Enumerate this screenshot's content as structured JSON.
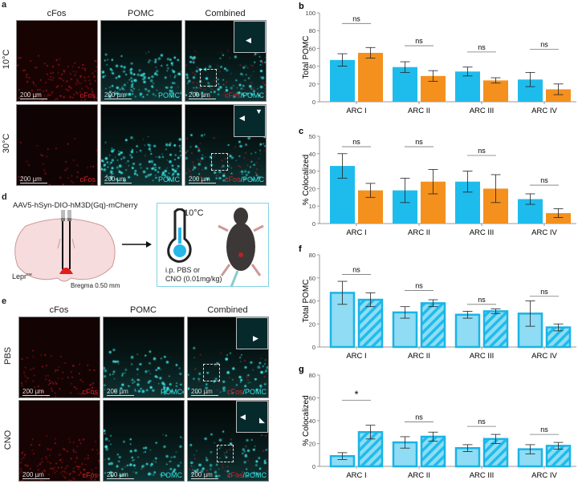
{
  "panel_labels": {
    "a": "a",
    "b": "b",
    "c": "c",
    "d": "d",
    "e": "e",
    "f": "f",
    "g": "g"
  },
  "panel_a": {
    "columns": [
      "cFos",
      "POMC",
      "Combined"
    ],
    "rows": [
      "10°C",
      "30°C"
    ],
    "scale_bar": "200 µm",
    "channel_labels": {
      "cfos": "cFos",
      "pomc": "POMC",
      "combined_red": "cFos",
      "combined_sep": "/",
      "combined_cyan": "POMC"
    }
  },
  "panel_d": {
    "virus": "AAV5-hSyn-DIO-hM3D(Gq)-mCherry",
    "mouse_line": "Lepr",
    "mouse_line_sup": "cre",
    "bregma": "Bregma 0.50 mm",
    "temperature": "10°C",
    "injection_line1": "i.p. PBS or",
    "injection_line2": "CNO (0.01mg/kg)"
  },
  "panel_e": {
    "columns": [
      "cFos",
      "POMC",
      "Combined"
    ],
    "rows": [
      "PBS",
      "CNO"
    ],
    "scale_bar": "200 µm",
    "channel_labels": {
      "cfos": "cFos",
      "pomc": "POMC",
      "combined_red": "cFos",
      "combined_sep": "/",
      "combined_cyan": "POMC"
    }
  },
  "colors": {
    "blue": "#1ebcec",
    "orange": "#f4901e",
    "light_blue": "#8fdcf4",
    "border_blue": "#1ab4e6",
    "cyan": "#2ee6e6",
    "red": "#e0202a"
  },
  "chart_data": [
    {
      "id": "b",
      "type": "bar",
      "ylabel": "Total POMC",
      "ylim": [
        0,
        100
      ],
      "yticks": [
        "0",
        "20",
        "40",
        "60",
        "80",
        "100"
      ],
      "categories": [
        "ARC I",
        "ARC II",
        "ARC III",
        "ARC IV"
      ],
      "style": "solid",
      "series": [
        {
          "values": [
            47,
            39,
            34,
            25
          ],
          "sem": [
            7,
            6,
            5,
            8
          ]
        },
        {
          "values": [
            55,
            29,
            24,
            14
          ],
          "sem": [
            6,
            6,
            3,
            6
          ]
        }
      ],
      "significance": [
        "ns",
        "ns",
        "ns",
        "ns"
      ],
      "bracket_at": [
        88,
        63,
        56,
        59
      ]
    },
    {
      "id": "c",
      "type": "bar",
      "ylabel": "% Colocalized",
      "ylim": [
        0,
        50
      ],
      "yticks": [
        "0",
        "10",
        "20",
        "30",
        "40",
        "50"
      ],
      "categories": [
        "ARC I",
        "ARC II",
        "ARC III",
        "ARC IV"
      ],
      "style": "solid",
      "series": [
        {
          "values": [
            33,
            19,
            24,
            14
          ],
          "sem": [
            7,
            7,
            6,
            3
          ]
        },
        {
          "values": [
            19,
            24,
            20,
            6
          ],
          "sem": [
            4,
            7,
            8,
            2.5
          ]
        }
      ],
      "significance": [
        "ns",
        "ns",
        "ns",
        "ns"
      ],
      "bracket_at": [
        44,
        44,
        39,
        22
      ]
    },
    {
      "id": "f",
      "type": "bar",
      "ylabel": "Total POMC",
      "ylim": [
        0,
        80
      ],
      "yticks": [
        "0",
        "20",
        "40",
        "60",
        "80"
      ],
      "categories": [
        "ARC I",
        "ARC II",
        "ARC III",
        "ARC IV"
      ],
      "style": "hatched",
      "series": [
        {
          "values": [
            47,
            30,
            28,
            29
          ],
          "sem": [
            10,
            5,
            3,
            11
          ]
        },
        {
          "values": [
            41,
            38,
            31,
            17
          ],
          "sem": [
            6,
            3,
            2,
            3
          ]
        }
      ],
      "significance": [
        "ns",
        "ns",
        "ns",
        "ns"
      ],
      "bracket_at": [
        63,
        49,
        37,
        44
      ]
    },
    {
      "id": "g",
      "type": "bar",
      "ylabel": "% Colocalized",
      "ylim": [
        0,
        80
      ],
      "yticks": [
        "0",
        "20",
        "40",
        "60",
        "80"
      ],
      "categories": [
        "ARC I",
        "ARC II",
        "ARC III",
        "ARC IV"
      ],
      "style": "hatched",
      "series": [
        {
          "values": [
            9,
            21,
            16,
            15
          ],
          "sem": [
            3,
            5,
            3,
            4
          ]
        },
        {
          "values": [
            30,
            26,
            24,
            18
          ],
          "sem": [
            6,
            4,
            4,
            3
          ]
        }
      ],
      "significance": [
        "*",
        "ns",
        "ns",
        "ns"
      ],
      "bracket_at": [
        58,
        39,
        35,
        28
      ]
    }
  ]
}
